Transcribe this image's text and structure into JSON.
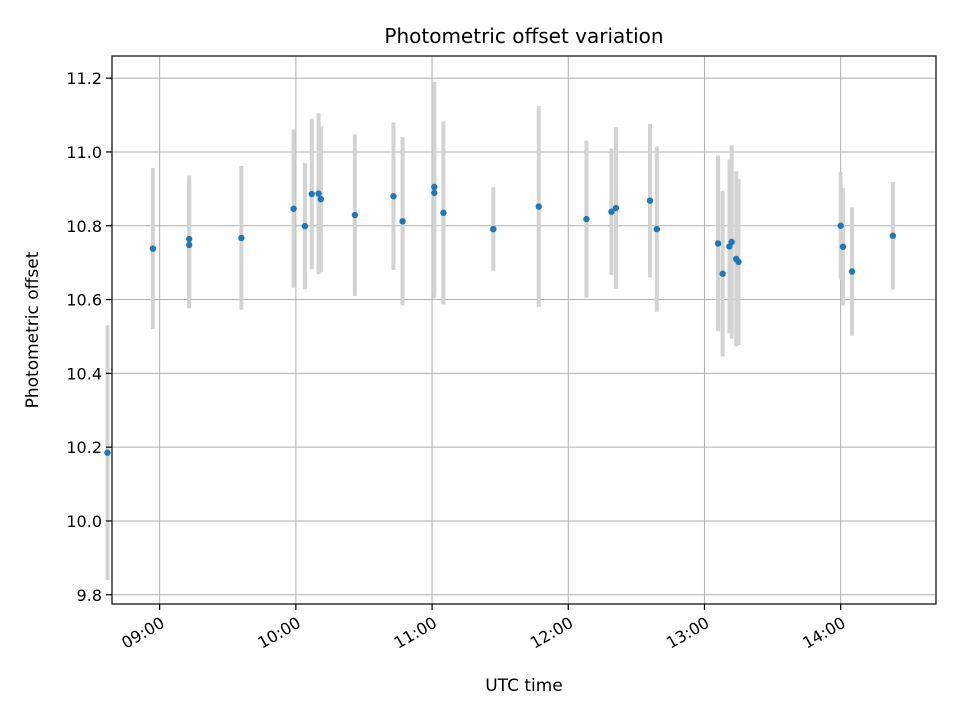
{
  "chart_data": {
    "type": "scatter",
    "title": "Photometric offset variation",
    "xlabel": "UTC time",
    "ylabel": "Photometric offset",
    "xlim": [
      "08:39",
      "14:42"
    ],
    "ylim": [
      9.775,
      11.26
    ],
    "x_ticks": [
      "09:00",
      "10:00",
      "11:00",
      "12:00",
      "13:00",
      "14:00"
    ],
    "y_ticks": [
      9.8,
      10.0,
      10.2,
      10.4,
      10.6,
      10.8,
      11.0,
      11.2
    ],
    "grid": true,
    "legend": "none",
    "colors": {
      "point": "#1f77b4",
      "errorbar": "#d3d3d3",
      "grid": "#b0b0b0"
    },
    "points": [
      {
        "t": "08:37",
        "y": 10.185,
        "err": 0.345
      },
      {
        "t": "08:57",
        "y": 10.738,
        "err": 0.218
      },
      {
        "t": "09:13",
        "y": 10.764,
        "err": 0.172
      },
      {
        "t": "09:13",
        "y": 10.748,
        "err": 0.172
      },
      {
        "t": "09:36",
        "y": 10.767,
        "err": 0.195
      },
      {
        "t": "09:59",
        "y": 10.846,
        "err": 0.214
      },
      {
        "t": "10:04",
        "y": 10.799,
        "err": 0.171
      },
      {
        "t": "10:07",
        "y": 10.886,
        "err": 0.204
      },
      {
        "t": "10:10",
        "y": 10.887,
        "err": 0.218
      },
      {
        "t": "10:11",
        "y": 10.872,
        "err": 0.198
      },
      {
        "t": "10:26",
        "y": 10.829,
        "err": 0.219
      },
      {
        "t": "10:43",
        "y": 10.88,
        "err": 0.2
      },
      {
        "t": "10:47",
        "y": 10.812,
        "err": 0.228
      },
      {
        "t": "11:01",
        "y": 10.905,
        "err": 0.285
      },
      {
        "t": "11:01",
        "y": 10.889,
        "err": 0.285
      },
      {
        "t": "11:05",
        "y": 10.835,
        "err": 0.248
      },
      {
        "t": "11:27",
        "y": 10.791,
        "err": 0.113
      },
      {
        "t": "11:47",
        "y": 10.852,
        "err": 0.272
      },
      {
        "t": "12:08",
        "y": 10.818,
        "err": 0.213
      },
      {
        "t": "12:19",
        "y": 10.838,
        "err": 0.171
      },
      {
        "t": "12:21",
        "y": 10.848,
        "err": 0.219
      },
      {
        "t": "12:36",
        "y": 10.868,
        "err": 0.208
      },
      {
        "t": "12:39",
        "y": 10.791,
        "err": 0.224
      },
      {
        "t": "13:06",
        "y": 10.752,
        "err": 0.238
      },
      {
        "t": "13:08",
        "y": 10.67,
        "err": 0.224
      },
      {
        "t": "13:11",
        "y": 10.744,
        "err": 0.236
      },
      {
        "t": "13:12",
        "y": 10.756,
        "err": 0.262
      },
      {
        "t": "13:14",
        "y": 10.71,
        "err": 0.237
      },
      {
        "t": "13:15",
        "y": 10.702,
        "err": 0.225
      },
      {
        "t": "14:00",
        "y": 10.8,
        "err": 0.146
      },
      {
        "t": "14:01",
        "y": 10.743,
        "err": 0.159
      },
      {
        "t": "14:05",
        "y": 10.676,
        "err": 0.174
      },
      {
        "t": "14:23",
        "y": 10.773,
        "err": 0.146
      }
    ]
  }
}
